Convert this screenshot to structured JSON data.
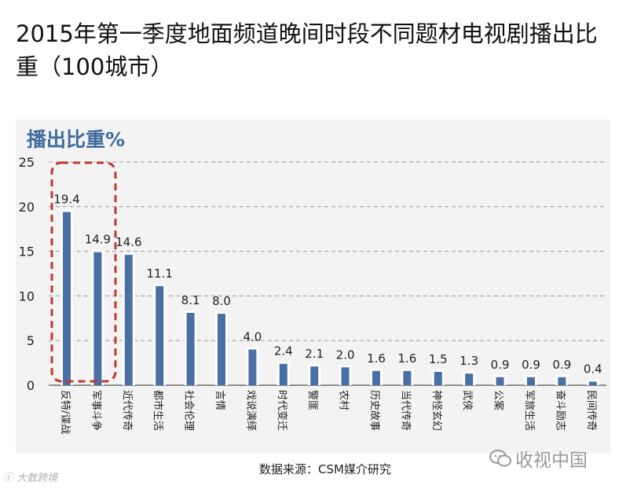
{
  "title": "2015年第一季度地面频道晚间时段不同题材电视剧播出比重（100城市）",
  "source": "数据来源：CSM媒介研究",
  "watermark": "收视中国",
  "logo_text": "大数跨境",
  "colors": {
    "bar": "#4a6fa5",
    "bar_halo": "#ffffff",
    "grid": "#9a9a9a",
    "highlight_box": "#c0392b",
    "ylabel": "#3f6c9c",
    "panel": "#f3f3f3"
  },
  "chart_data": {
    "type": "bar",
    "title": "",
    "ylabel": "播出比重%",
    "xlabel": "",
    "ylim": [
      0,
      25
    ],
    "yticks": [
      0,
      5,
      10,
      15,
      20,
      25
    ],
    "grid": true,
    "categories": [
      "反特/谍战",
      "军事斗争",
      "近代传奇",
      "都市生活",
      "社会伦理",
      "言情",
      "戏说演绎",
      "时代变迁",
      "警匪",
      "农村",
      "历史故事",
      "当代传奇",
      "神怪玄幻",
      "武侠",
      "公案",
      "军旅生活",
      "奋斗励志",
      "民间传奇"
    ],
    "values": [
      19.4,
      14.9,
      14.6,
      11.1,
      8.1,
      8.0,
      4.0,
      2.4,
      2.1,
      2.0,
      1.6,
      1.6,
      1.5,
      1.3,
      0.9,
      0.9,
      0.9,
      0.4
    ],
    "value_labels": [
      "19.4",
      "14.9",
      "14.6",
      "11.1",
      "8.1",
      "8.0",
      "4.0",
      "2.4",
      "2.1",
      "2.0",
      "1.6",
      "1.6",
      "1.5",
      "1.3",
      "0.9",
      "0.9",
      "0.9",
      "0.4"
    ],
    "highlight": [
      "反特/谍战",
      "军事斗争"
    ]
  }
}
